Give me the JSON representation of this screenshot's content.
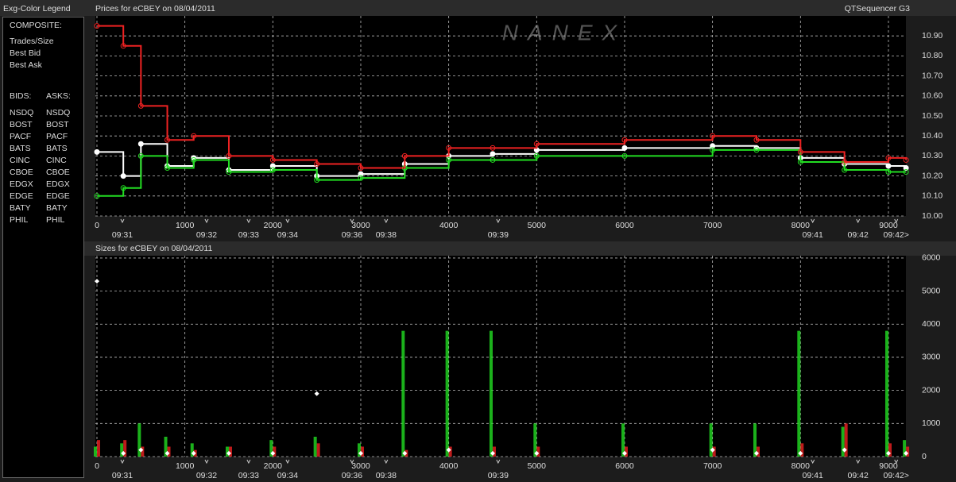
{
  "header": {
    "left": "Exg-Color Legend",
    "right": "QTSequencer G3"
  },
  "watermark": "NANEX",
  "exchange_legend": {
    "composite_label": "COMPOSITE:",
    "bids_label": "BIDS:",
    "asks_label": "ASKS:",
    "rows": [
      {
        "bid": "NSDQ",
        "bid_color": "#3f7cff",
        "ask": "NSDQ",
        "ask_color": "#ff9a4a"
      },
      {
        "bid": "BOST",
        "bid_color": "#b8e0a0",
        "ask": "BOST",
        "ask_color": "#e07a5a"
      },
      {
        "bid": "PACF",
        "bid_color": "#ffff80",
        "ask": "PACF",
        "ask_color": "#ffff40"
      },
      {
        "bid": "BATS",
        "bid_color": "#80c8ff",
        "ask": "BATS",
        "ask_color": "#ffd080"
      },
      {
        "bid": "CINC",
        "bid_color": "#5aa0a0",
        "ask": "CINC",
        "ask_color": "#c0c080"
      },
      {
        "bid": "CBOE",
        "bid_color": "#2a5cd0",
        "ask": "CBOE",
        "ask_color": "#e0904a"
      },
      {
        "bid": "EDGX",
        "bid_color": "#40a040",
        "ask": "EDGX",
        "ask_color": "#c04848"
      },
      {
        "bid": "EDGE",
        "bid_color": "#60c060",
        "ask": "EDGE",
        "ask_color": "#c06040"
      },
      {
        "bid": "BATY",
        "bid_color": "#6a6aff",
        "ask": "BATY",
        "ask_color": "#ff6060"
      },
      {
        "bid": "PHIL",
        "bid_color": "#90b050",
        "ask": "PHIL",
        "ask_color": "#c04880"
      }
    ]
  },
  "chart_data": [
    {
      "type": "line",
      "title": "Prices for  eCBEY  on  08/04/2011",
      "x": [
        0,
        300,
        500,
        800,
        1100,
        1500,
        2000,
        2500,
        3000,
        3500,
        4000,
        4500,
        5000,
        6000,
        7000,
        7500,
        8000,
        8500,
        9000,
        9200
      ],
      "series": [
        {
          "name": "Trades/Size",
          "color": "#ffffff",
          "values": [
            10.32,
            10.2,
            10.36,
            10.25,
            10.29,
            10.23,
            10.25,
            10.2,
            10.21,
            10.26,
            10.3,
            10.31,
            10.33,
            10.34,
            10.35,
            10.34,
            10.29,
            10.26,
            10.25,
            10.24
          ]
        },
        {
          "name": "Best Bid",
          "color": "#22dd22",
          "values": [
            10.1,
            10.14,
            10.3,
            10.24,
            10.28,
            10.22,
            10.23,
            10.18,
            10.19,
            10.24,
            10.28,
            10.28,
            10.3,
            10.3,
            10.33,
            10.33,
            10.27,
            10.23,
            10.22,
            10.22
          ]
        },
        {
          "name": "Best Ask",
          "color": "#ee2222",
          "values": [
            10.95,
            10.85,
            10.55,
            10.38,
            10.4,
            10.3,
            10.28,
            10.26,
            10.24,
            10.3,
            10.34,
            10.34,
            10.36,
            10.38,
            10.4,
            10.38,
            10.32,
            10.27,
            10.29,
            10.28
          ]
        }
      ],
      "xlim": [
        -18,
        9199
      ],
      "xticks": [
        0,
        1000,
        2000,
        3000,
        4000,
        5000,
        6000,
        7000,
        8000,
        9000
      ],
      "time_ticks": [
        {
          "value": 289,
          "label": "09:31"
        },
        {
          "value": 1247,
          "label": "09:32"
        },
        {
          "value": 1725,
          "label": "09:33"
        },
        {
          "value": 2168,
          "label": "09:34"
        },
        {
          "value": 2900,
          "label": "09:36"
        },
        {
          "value": 3288,
          "label": "09:38"
        },
        {
          "value": 4562,
          "label": "09:39"
        },
        {
          "value": 8139,
          "label": "09:41"
        },
        {
          "value": 8654,
          "label": "09:42"
        },
        {
          "value": 9088,
          "label": "09:42>"
        }
      ],
      "ylim": [
        10.0,
        11.0
      ],
      "yticks": [
        {
          "value": 10.0,
          "label": "10.00"
        },
        {
          "value": 10.1,
          "label": "10.10"
        },
        {
          "value": 10.2,
          "label": "10.20"
        },
        {
          "value": 10.3,
          "label": "10.30"
        },
        {
          "value": 10.4,
          "label": "10.40"
        },
        {
          "value": 10.5,
          "label": "10.50"
        },
        {
          "value": 10.6,
          "label": "10.60"
        },
        {
          "value": 10.7,
          "label": "10.70"
        },
        {
          "value": 10.8,
          "label": "10.80"
        },
        {
          "value": 10.9,
          "label": "10.90"
        }
      ],
      "grid": true
    },
    {
      "type": "bar",
      "title": "Sizes for  eCBEY  on  08/04/2011",
      "x": [
        0,
        300,
        500,
        800,
        1100,
        1500,
        2000,
        2500,
        3000,
        3500,
        4000,
        4500,
        5000,
        6000,
        7000,
        7500,
        8000,
        8500,
        9000,
        9200
      ],
      "series": [
        {
          "name": "Best Bid",
          "color": "#22dd22",
          "values": [
            300,
            400,
            1000,
            600,
            400,
            300,
            500,
            600,
            400,
            3800,
            3800,
            3800,
            1000,
            1000,
            1000,
            1000,
            3800,
            900,
            3800,
            500
          ]
        },
        {
          "name": "Best Ask",
          "color": "#ee2222",
          "values": [
            500,
            500,
            300,
            300,
            200,
            300,
            300,
            400,
            300,
            200,
            300,
            300,
            300,
            300,
            300,
            300,
            400,
            1000,
            400,
            300
          ]
        },
        {
          "name": "Trades/Size",
          "color": "#ffffff",
          "values": [
            5300,
            100,
            200,
            100,
            100,
            100,
            100,
            1900,
            100,
            100,
            200,
            100,
            100,
            100,
            200,
            100,
            100,
            200,
            100,
            100
          ]
        }
      ],
      "xlim": [
        -18,
        9199
      ],
      "xticks": [
        0,
        1000,
        2000,
        3000,
        4000,
        5000,
        6000,
        7000,
        8000,
        9000
      ],
      "time_ticks": [
        {
          "value": 289,
          "label": "09:31"
        },
        {
          "value": 1247,
          "label": "09:32"
        },
        {
          "value": 1725,
          "label": "09:33"
        },
        {
          "value": 2168,
          "label": "09:34"
        },
        {
          "value": 2900,
          "label": "09:36"
        },
        {
          "value": 3288,
          "label": "09:38"
        },
        {
          "value": 4562,
          "label": "09:39"
        },
        {
          "value": 8139,
          "label": "09:41"
        },
        {
          "value": 8654,
          "label": "09:42"
        },
        {
          "value": 9088,
          "label": "09:42>"
        }
      ],
      "ylim": [
        0,
        6070
      ],
      "yticks": [
        0,
        1000,
        2000,
        3000,
        4000,
        5000,
        6000
      ],
      "grid": true
    }
  ]
}
